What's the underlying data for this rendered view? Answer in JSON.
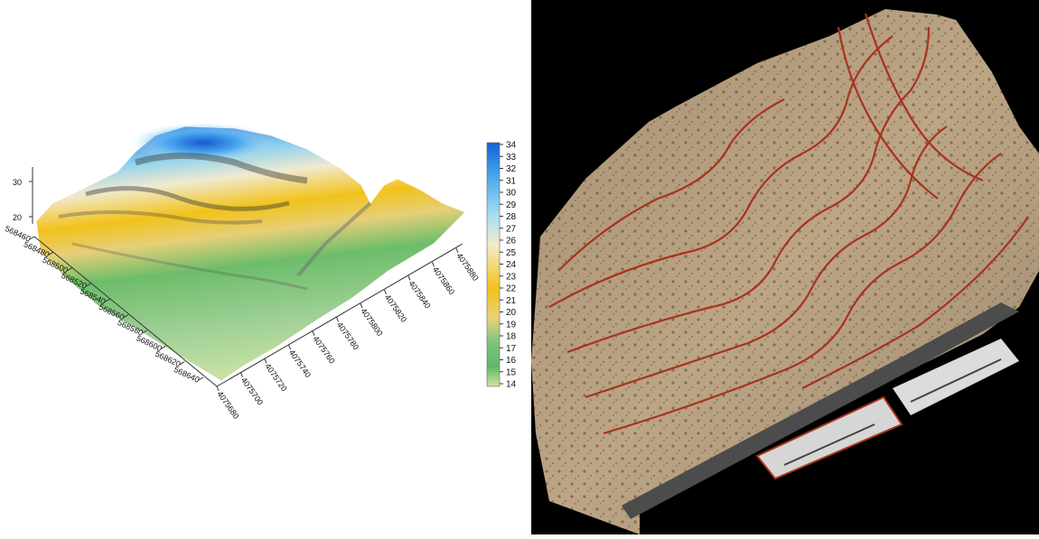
{
  "left_view": {
    "z_axis": {
      "ticks": [
        "30",
        "20"
      ]
    },
    "x_axis": {
      "labels": [
        "568460",
        "568480",
        "568500",
        "568520",
        "568540",
        "568560",
        "568580",
        "568600",
        "568620",
        "568640"
      ]
    },
    "y_axis": {
      "labels": [
        "4075680",
        "4075700",
        "4075720",
        "4075740",
        "4075760",
        "4075780",
        "4075800",
        "4075820",
        "4075840",
        "4075860",
        "4075880"
      ]
    },
    "colorbar": {
      "min": 14,
      "max": 34,
      "labels": [
        "34",
        "33",
        "32",
        "31",
        "30",
        "29",
        "28",
        "27",
        "26",
        "25",
        "24",
        "23",
        "22",
        "21",
        "20",
        "19",
        "18",
        "17",
        "16",
        "15",
        "14"
      ],
      "colors": {
        "low": "#d4e29a",
        "green": "#5fb86a",
        "yellow": "#f2c21a",
        "cream": "#f2ebc8",
        "lightblue": "#8ad4f0",
        "blue": "#1460d8"
      }
    }
  },
  "right_view": {
    "background": "#000000",
    "terrain_color": "#b59a7c",
    "contour_color": "#a8321f"
  }
}
